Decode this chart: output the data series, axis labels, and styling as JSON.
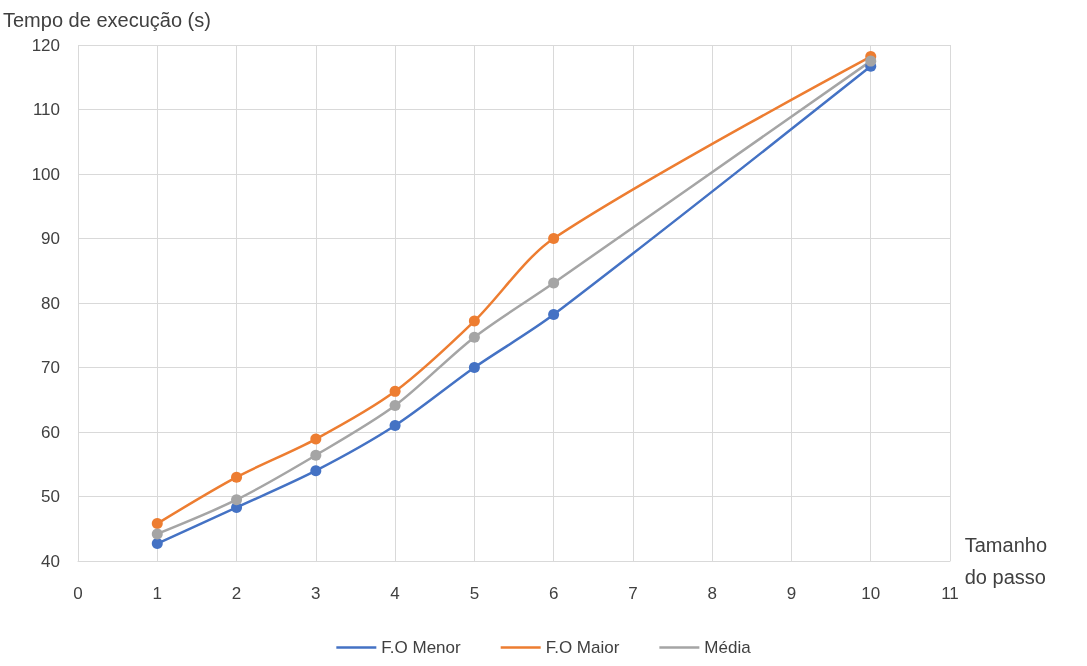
{
  "chart_data": {
    "type": "line",
    "xlabel": "Tamanho\ndo passo",
    "ylabel": "Tempo de execução (s)",
    "x": [
      1,
      2,
      3,
      4,
      5,
      6,
      10
    ],
    "series": [
      {
        "name": "F.O Menor",
        "color": "#4472c4",
        "values": [
          42.7,
          48.3,
          54,
          61,
          70,
          78.2,
          116.7
        ]
      },
      {
        "name": "F.O Maior",
        "color": "#ed7d31",
        "values": [
          45.8,
          53,
          58.9,
          66.3,
          77.2,
          90,
          118.2
        ]
      },
      {
        "name": "Média",
        "color": "#a5a5a5",
        "values": [
          44.2,
          49.5,
          56.4,
          64.1,
          74.7,
          83.1,
          117.5
        ]
      }
    ],
    "xlim": [
      0,
      11
    ],
    "xticks": [
      0,
      1,
      2,
      3,
      4,
      5,
      6,
      7,
      8,
      9,
      10,
      11
    ],
    "ylim": [
      40,
      120
    ],
    "yticks": [
      40,
      50,
      60,
      70,
      80,
      90,
      100,
      110,
      120
    ],
    "grid": true,
    "legend": "bottom",
    "marker": "circle",
    "line_style": "solid"
  }
}
